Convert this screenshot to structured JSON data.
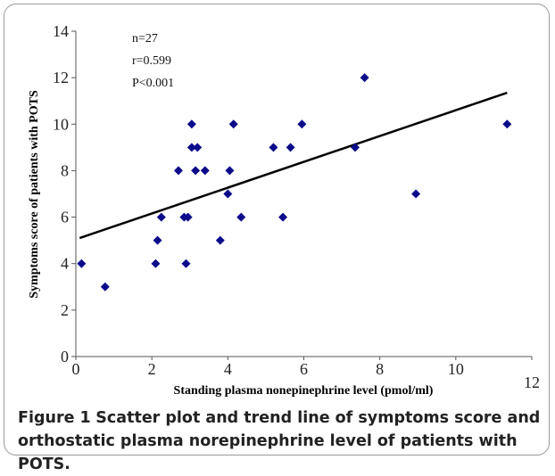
{
  "chart_data": {
    "type": "scatter",
    "xlabel": "Standing plasma nonepinephrine level (pmol/ml)",
    "ylabel": "Symptoms score of patients with POTS",
    "annotations": [
      "n=27",
      "r=0.599",
      "P<0.001"
    ],
    "xlim": [
      0,
      12
    ],
    "ylim": [
      0,
      14
    ],
    "xticks": [
      0,
      2,
      4,
      6,
      8,
      10,
      12
    ],
    "yticks": [
      0,
      2,
      4,
      6,
      8,
      10,
      12,
      14
    ],
    "color": "#0b0b8a",
    "x": [
      0.15,
      0.77,
      2.1,
      2.15,
      2.25,
      2.7,
      2.85,
      2.9,
      2.95,
      3.05,
      3.05,
      3.15,
      3.2,
      3.4,
      3.8,
      4.0,
      4.05,
      4.15,
      4.35,
      5.2,
      5.45,
      5.65,
      5.95,
      7.35,
      7.6,
      8.95,
      11.35
    ],
    "y": [
      4,
      3,
      4,
      5,
      6,
      8,
      6,
      4,
      6,
      10,
      9,
      8,
      9,
      8,
      5,
      7,
      8,
      10,
      6,
      9,
      6,
      9,
      10,
      9,
      12,
      7,
      10
    ],
    "trend_line": {
      "x": [
        0.1,
        11.35
      ],
      "y": [
        5.1,
        11.35
      ],
      "color": "#000000"
    }
  },
  "caption": {
    "label": "Figure 1",
    "text": "Scatter plot and trend line of symptoms score and orthostatic plasma norepinephrine level of patients with POTS."
  }
}
